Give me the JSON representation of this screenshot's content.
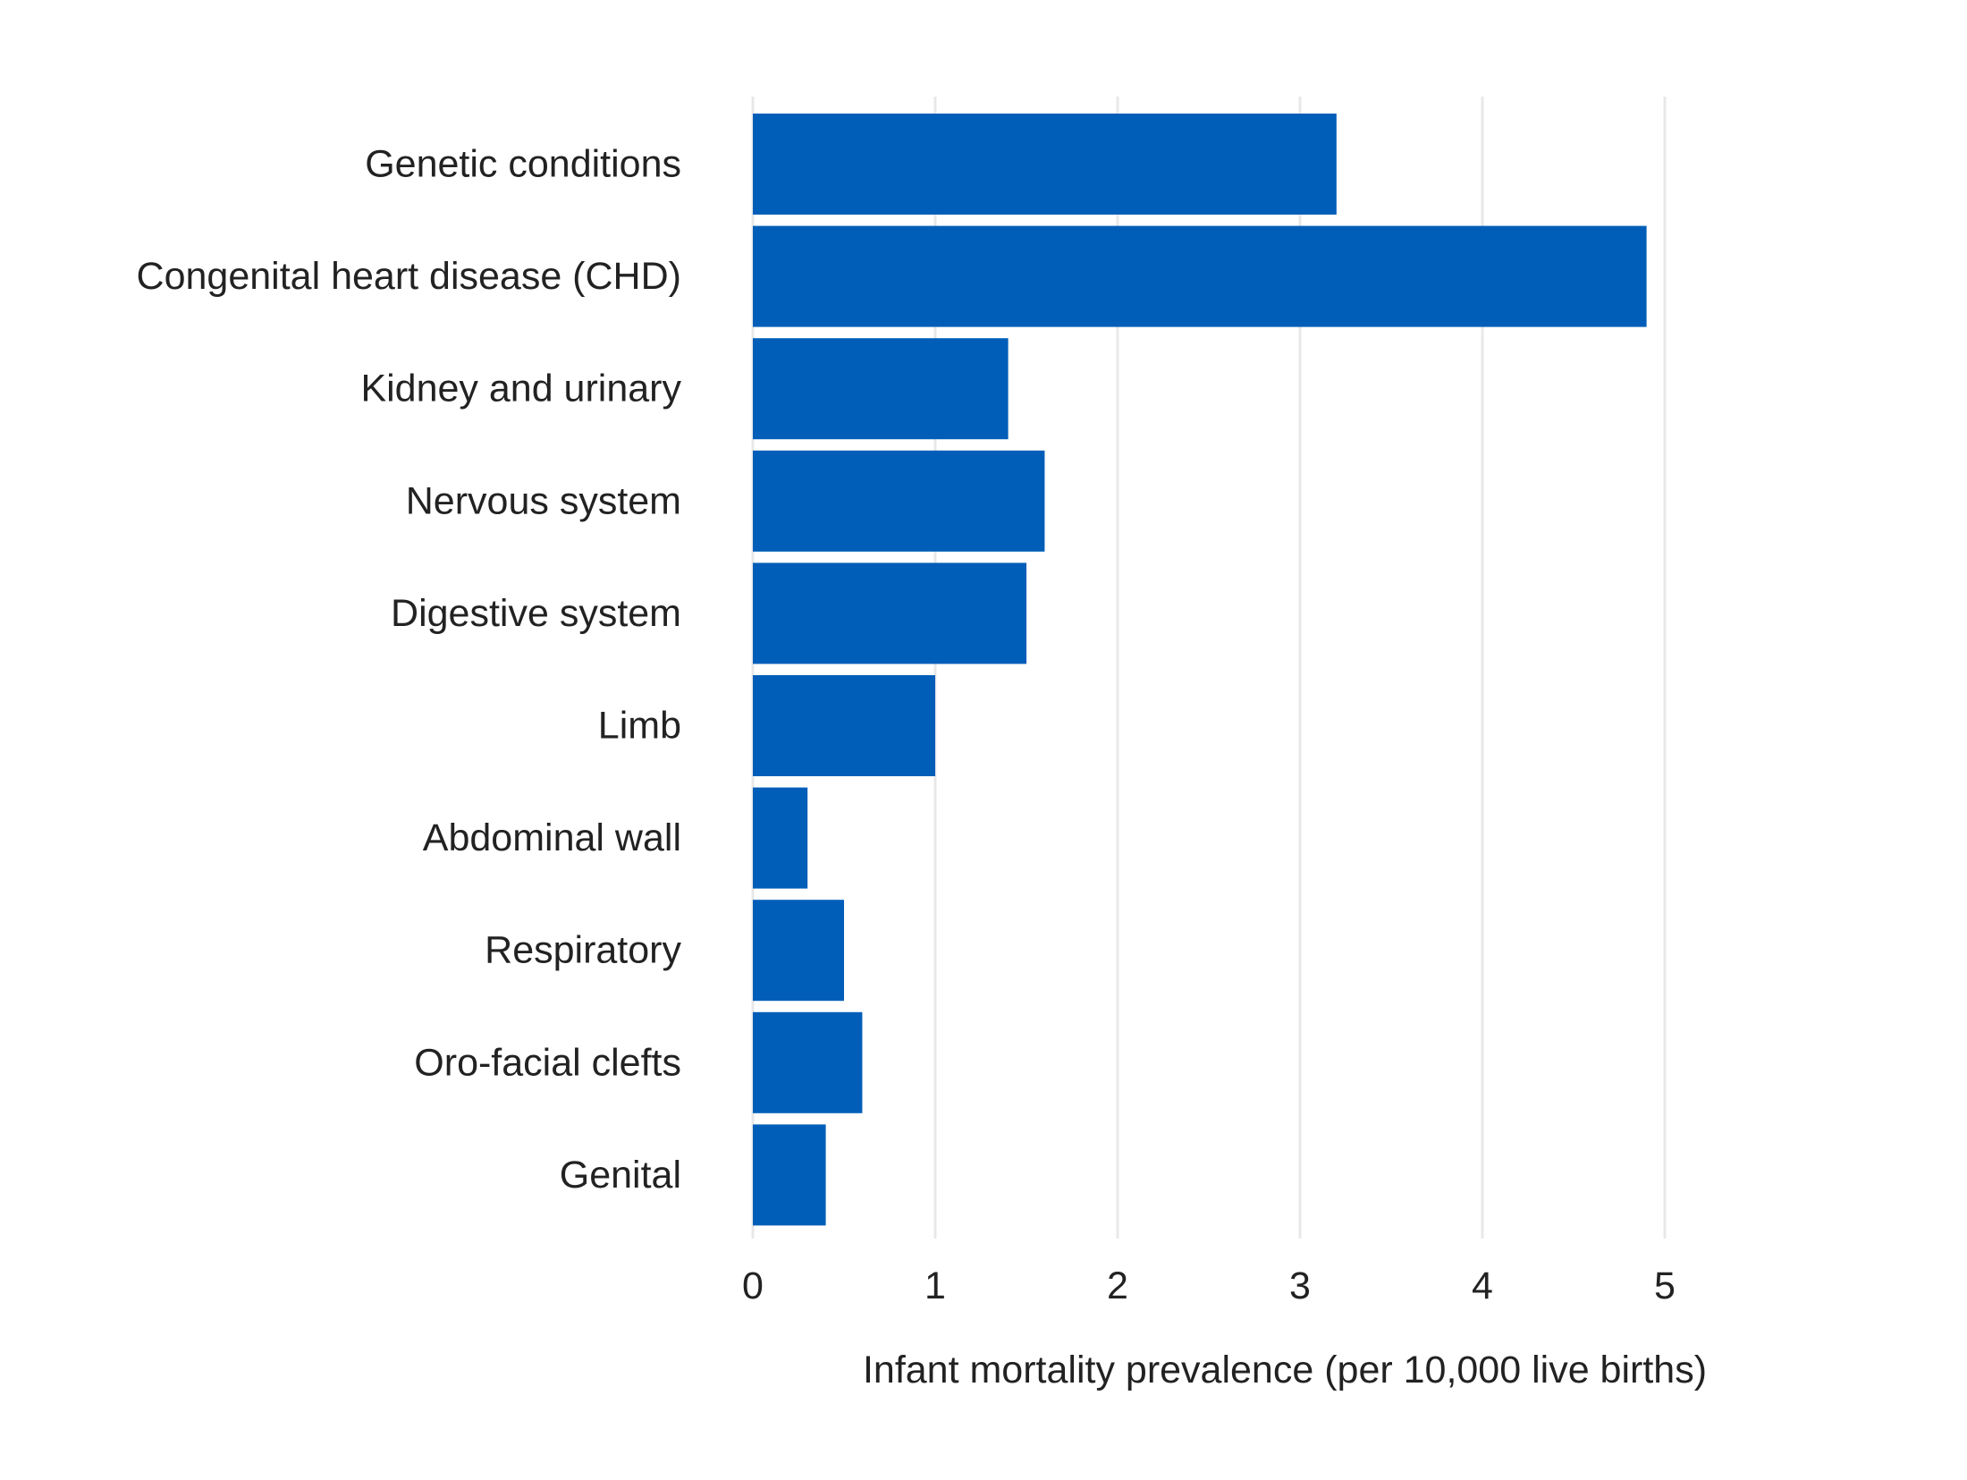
{
  "chart_data": {
    "type": "bar",
    "orientation": "horizontal",
    "title": "",
    "xlabel": "Infant mortality prevalence (per 10,000 live births)",
    "ylabel": "",
    "categories": [
      "Genetic conditions",
      "Congenital heart disease (CHD)",
      "Kidney and urinary",
      "Nervous system",
      "Digestive system",
      "Limb",
      "Abdominal wall",
      "Respiratory",
      "Oro-facial clefts",
      "Genital"
    ],
    "values": [
      3.2,
      4.9,
      1.4,
      1.6,
      1.5,
      1.0,
      0.3,
      0.5,
      0.6,
      0.4
    ],
    "xlim": [
      0,
      5
    ],
    "xticks": [
      "0",
      "1",
      "2",
      "3",
      "4",
      "5"
    ],
    "grid": "vertical",
    "legend": "none",
    "bar_color": "#005EB8",
    "grid_color": "#E8E8E8",
    "text_color": "#222222"
  }
}
